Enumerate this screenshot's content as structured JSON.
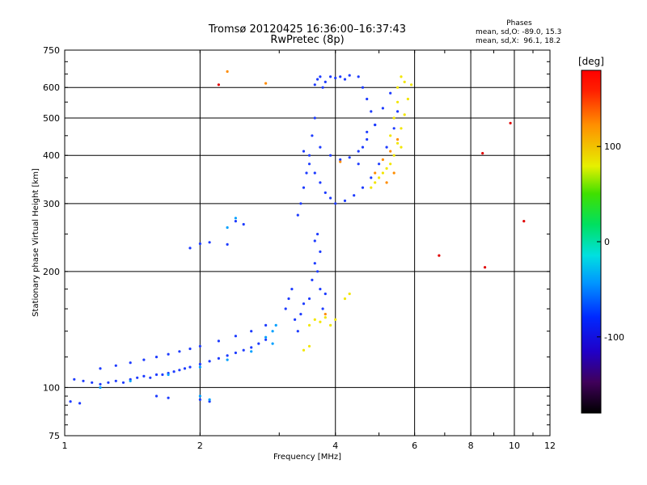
{
  "chart_data": {
    "type": "scatter",
    "title": "Tromsø 20120425 16:36:00–16:37:43",
    "subtitle": "RwPretec (8p)",
    "phases_header": "Phases",
    "phases_lines": [
      "mean, sd,O: -89.0, 15.3",
      "mean, sd,X:  96.1, 18.2"
    ],
    "xlabel": "Frequency [MHz]",
    "ylabel": "Stationary phase Virtual Height [km]",
    "xscale": "log",
    "yscale": "log",
    "xlim": [
      1,
      12
    ],
    "ylim": [
      75,
      750
    ],
    "x_ticks": [
      1,
      2,
      4,
      6,
      8,
      10,
      12
    ],
    "x_tick_labels": [
      "1",
      "2",
      "4",
      "6",
      "8",
      "10",
      "12"
    ],
    "y_ticks": [
      75,
      100,
      200,
      300,
      400,
      500,
      600,
      750
    ],
    "y_tick_labels": [
      "75",
      "100",
      "200",
      "300",
      "400",
      "500",
      "600",
      "750"
    ],
    "grid": true,
    "colorbar": {
      "label": "[deg]",
      "range": [
        -180,
        180
      ],
      "ticks": [
        100,
        0,
        -100
      ],
      "tick_labels": [
        "100",
        "0",
        "-100"
      ]
    },
    "series": [
      {
        "color": "#1e3cff",
        "phase": -89,
        "points": [
          [
            1.05,
            105
          ],
          [
            1.1,
            104
          ],
          [
            1.15,
            103
          ],
          [
            1.2,
            102
          ],
          [
            1.25,
            103
          ],
          [
            1.3,
            104
          ],
          [
            1.35,
            103
          ],
          [
            1.4,
            105
          ],
          [
            1.45,
            106
          ],
          [
            1.5,
            107
          ],
          [
            1.55,
            106
          ],
          [
            1.6,
            108
          ],
          [
            1.65,
            108
          ],
          [
            1.7,
            109
          ],
          [
            1.75,
            110
          ],
          [
            1.8,
            111
          ],
          [
            1.85,
            112
          ],
          [
            1.9,
            113
          ],
          [
            2.0,
            115
          ],
          [
            2.1,
            117
          ],
          [
            2.2,
            119
          ],
          [
            2.3,
            121
          ],
          [
            2.4,
            123
          ],
          [
            2.5,
            125
          ],
          [
            2.6,
            127
          ],
          [
            2.7,
            130
          ],
          [
            2.8,
            133
          ],
          [
            1.2,
            112
          ],
          [
            1.3,
            114
          ],
          [
            1.4,
            116
          ],
          [
            1.5,
            118
          ],
          [
            1.6,
            120
          ],
          [
            1.7,
            122
          ],
          [
            1.8,
            124
          ],
          [
            1.9,
            126
          ],
          [
            2.0,
            128
          ],
          [
            2.2,
            132
          ],
          [
            2.4,
            136
          ],
          [
            2.6,
            140
          ],
          [
            2.8,
            145
          ],
          [
            1.03,
            92
          ],
          [
            1.08,
            91
          ],
          [
            1.6,
            95
          ],
          [
            1.7,
            94
          ],
          [
            2.0,
            93
          ],
          [
            2.1,
            92
          ],
          [
            1.9,
            230
          ],
          [
            2.0,
            236
          ],
          [
            2.1,
            238
          ],
          [
            2.3,
            235
          ],
          [
            2.4,
            270
          ],
          [
            2.5,
            265
          ],
          [
            3.1,
            160
          ],
          [
            3.15,
            170
          ],
          [
            3.2,
            180
          ],
          [
            3.25,
            150
          ],
          [
            3.3,
            140
          ],
          [
            3.35,
            155
          ],
          [
            3.4,
            165
          ],
          [
            3.5,
            170
          ],
          [
            3.55,
            190
          ],
          [
            3.6,
            210
          ],
          [
            3.65,
            200
          ],
          [
            3.7,
            180
          ],
          [
            3.75,
            160
          ],
          [
            3.8,
            175
          ],
          [
            3.6,
            240
          ],
          [
            3.65,
            250
          ],
          [
            3.7,
            225
          ],
          [
            3.3,
            280
          ],
          [
            3.35,
            300
          ],
          [
            3.4,
            330
          ],
          [
            3.45,
            360
          ],
          [
            3.5,
            400
          ],
          [
            3.55,
            450
          ],
          [
            3.6,
            500
          ],
          [
            3.4,
            410
          ],
          [
            3.5,
            380
          ],
          [
            3.6,
            360
          ],
          [
            3.7,
            340
          ],
          [
            3.8,
            320
          ],
          [
            3.9,
            310
          ],
          [
            4.0,
            300
          ],
          [
            4.2,
            305
          ],
          [
            4.4,
            315
          ],
          [
            4.6,
            330
          ],
          [
            4.8,
            350
          ],
          [
            5.0,
            380
          ],
          [
            5.2,
            420
          ],
          [
            5.4,
            470
          ],
          [
            5.5,
            520
          ],
          [
            3.7,
            420
          ],
          [
            3.9,
            400
          ],
          [
            4.1,
            390
          ],
          [
            4.3,
            395
          ],
          [
            4.5,
            410
          ],
          [
            4.7,
            440
          ],
          [
            4.9,
            480
          ],
          [
            5.1,
            530
          ],
          [
            5.3,
            580
          ],
          [
            3.6,
            610
          ],
          [
            3.65,
            630
          ],
          [
            3.7,
            640
          ],
          [
            3.75,
            600
          ],
          [
            3.8,
            620
          ],
          [
            3.9,
            640
          ],
          [
            4.0,
            635
          ],
          [
            4.1,
            640
          ],
          [
            4.2,
            630
          ],
          [
            4.3,
            645
          ],
          [
            4.5,
            640
          ],
          [
            4.6,
            600
          ],
          [
            4.7,
            560
          ],
          [
            4.8,
            520
          ],
          [
            4.9,
            480
          ],
          [
            4.5,
            380
          ],
          [
            4.6,
            420
          ],
          [
            4.7,
            460
          ]
        ]
      },
      {
        "color": "#00a0ff",
        "phase": -50,
        "points": [
          [
            1.2,
            100
          ],
          [
            1.4,
            104
          ],
          [
            1.7,
            108
          ],
          [
            2.0,
            113
          ],
          [
            2.3,
            118
          ],
          [
            2.6,
            124
          ],
          [
            2.8,
            135
          ],
          [
            2.9,
            140
          ],
          [
            2.95,
            145
          ],
          [
            2.3,
            260
          ],
          [
            2.4,
            275
          ],
          [
            2.9,
            130
          ],
          [
            2.0,
            95
          ],
          [
            2.1,
            93
          ]
        ]
      },
      {
        "color": "#f2e600",
        "phase": 100,
        "points": [
          [
            3.5,
            145
          ],
          [
            3.6,
            150
          ],
          [
            3.7,
            148
          ],
          [
            3.8,
            152
          ],
          [
            3.9,
            145
          ],
          [
            4.0,
            150
          ],
          [
            3.4,
            125
          ],
          [
            3.5,
            128
          ],
          [
            4.2,
            170
          ],
          [
            4.3,
            175
          ],
          [
            4.8,
            330
          ],
          [
            4.9,
            340
          ],
          [
            5.0,
            350
          ],
          [
            5.1,
            360
          ],
          [
            5.2,
            370
          ],
          [
            5.3,
            380
          ],
          [
            5.4,
            400
          ],
          [
            5.5,
            430
          ],
          [
            5.6,
            470
          ],
          [
            5.7,
            510
          ],
          [
            5.8,
            560
          ],
          [
            5.9,
            610
          ],
          [
            5.5,
            600
          ],
          [
            5.6,
            640
          ],
          [
            5.7,
            620
          ],
          [
            5.3,
            450
          ],
          [
            5.4,
            500
          ],
          [
            5.5,
            550
          ],
          [
            5.6,
            420
          ]
        ]
      },
      {
        "color": "#ff8c00",
        "phase": 130,
        "points": [
          [
            4.9,
            360
          ],
          [
            5.1,
            390
          ],
          [
            5.3,
            410
          ],
          [
            5.5,
            440
          ],
          [
            5.2,
            340
          ],
          [
            5.4,
            360
          ],
          [
            3.8,
            155
          ],
          [
            2.3,
            660
          ],
          [
            2.8,
            615
          ],
          [
            4.1,
            385
          ]
        ]
      },
      {
        "color": "#e00000",
        "phase": 170,
        "points": [
          [
            8.5,
            405
          ],
          [
            8.6,
            205
          ],
          [
            9.8,
            485
          ],
          [
            6.8,
            220
          ],
          [
            2.2,
            610
          ],
          [
            10.5,
            270
          ]
        ]
      }
    ]
  }
}
